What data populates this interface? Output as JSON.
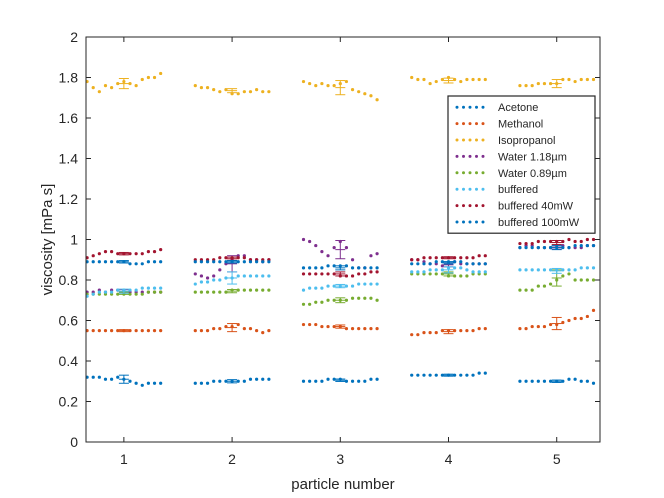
{
  "chart_data": {
    "type": "scatter",
    "title": "",
    "xlabel": "particle number",
    "ylabel": "viscosity [mPa s]",
    "xlim": [
      0.65,
      5.4
    ],
    "ylim": [
      0,
      2
    ],
    "xticks": [
      1,
      2,
      3,
      4,
      5
    ],
    "yticks": [
      0,
      0.2,
      0.4,
      0.6,
      0.8,
      1,
      1.2,
      1.4,
      1.6,
      1.8,
      2
    ],
    "ytick_labels": [
      "0",
      "0.2",
      "0.4",
      "0.6",
      "0.8",
      "1",
      "1.2",
      "1.4",
      "1.6",
      "1.8",
      "2"
    ],
    "grid": false,
    "legend_position": "top-right",
    "series": [
      {
        "name": "Acetone",
        "color": "#0072BD",
        "particles": [
          {
            "particle": 1,
            "mean": 0.31,
            "err": 0.02,
            "values": [
              0.32,
              0.32,
              0.32,
              0.31,
              0.31,
              0.32,
              0.31,
              0.3,
              0.29,
              0.28,
              0.29,
              0.29,
              0.29
            ]
          },
          {
            "particle": 2,
            "mean": 0.3,
            "err": 0.008,
            "values": [
              0.29,
              0.29,
              0.29,
              0.3,
              0.3,
              0.3,
              0.3,
              0.3,
              0.3,
              0.31,
              0.31,
              0.31,
              0.31
            ]
          },
          {
            "particle": 3,
            "mean": 0.305,
            "err": 0.006,
            "values": [
              0.3,
              0.3,
              0.3,
              0.3,
              0.31,
              0.31,
              0.31,
              0.3,
              0.3,
              0.3,
              0.3,
              0.31,
              0.31
            ]
          },
          {
            "particle": 4,
            "mean": 0.33,
            "err": 0.005,
            "values": [
              0.33,
              0.33,
              0.33,
              0.33,
              0.33,
              0.33,
              0.33,
              0.33,
              0.33,
              0.33,
              0.33,
              0.34,
              0.34
            ]
          },
          {
            "particle": 5,
            "mean": 0.3,
            "err": 0.006,
            "values": [
              0.3,
              0.3,
              0.3,
              0.3,
              0.3,
              0.3,
              0.3,
              0.3,
              0.31,
              0.31,
              0.3,
              0.3,
              0.29
            ]
          }
        ]
      },
      {
        "name": "Methanol",
        "color": "#D95319",
        "particles": [
          {
            "particle": 1,
            "mean": 0.55,
            "err": 0.005,
            "values": [
              0.55,
              0.55,
              0.55,
              0.55,
              0.55,
              0.55,
              0.55,
              0.55,
              0.55,
              0.55,
              0.55,
              0.55,
              0.55
            ]
          },
          {
            "particle": 2,
            "mean": 0.565,
            "err": 0.02,
            "values": [
              0.55,
              0.55,
              0.55,
              0.56,
              0.56,
              0.57,
              0.57,
              0.58,
              0.56,
              0.56,
              0.55,
              0.54,
              0.55
            ]
          },
          {
            "particle": 3,
            "mean": 0.57,
            "err": 0.008,
            "values": [
              0.58,
              0.58,
              0.58,
              0.57,
              0.57,
              0.57,
              0.57,
              0.56,
              0.56,
              0.56,
              0.56,
              0.56,
              0.56
            ]
          },
          {
            "particle": 4,
            "mean": 0.545,
            "err": 0.01,
            "values": [
              0.53,
              0.53,
              0.54,
              0.54,
              0.54,
              0.55,
              0.55,
              0.55,
              0.55,
              0.55,
              0.55,
              0.56,
              0.56
            ]
          },
          {
            "particle": 5,
            "mean": 0.585,
            "err": 0.03,
            "values": [
              0.56,
              0.56,
              0.57,
              0.57,
              0.57,
              0.58,
              0.58,
              0.59,
              0.6,
              0.61,
              0.61,
              0.62,
              0.65
            ]
          }
        ]
      },
      {
        "name": "Isopropanol",
        "color": "#EDB120",
        "particles": [
          {
            "particle": 1,
            "mean": 1.77,
            "err": 0.025,
            "values": [
              1.78,
              1.75,
              1.73,
              1.76,
              1.75,
              1.77,
              1.78,
              1.77,
              1.76,
              1.79,
              1.8,
              1.8,
              1.82
            ]
          },
          {
            "particle": 2,
            "mean": 1.735,
            "err": 0.01,
            "values": [
              1.76,
              1.75,
              1.75,
              1.74,
              1.73,
              1.74,
              1.72,
              1.72,
              1.73,
              1.73,
              1.74,
              1.73,
              1.73
            ]
          },
          {
            "particle": 3,
            "mean": 1.75,
            "err": 0.035,
            "values": [
              1.78,
              1.77,
              1.76,
              1.77,
              1.76,
              1.76,
              1.77,
              1.78,
              1.74,
              1.73,
              1.72,
              1.71,
              1.69
            ]
          },
          {
            "particle": 4,
            "mean": 1.785,
            "err": 0.012,
            "values": [
              1.8,
              1.79,
              1.79,
              1.77,
              1.78,
              1.79,
              1.8,
              1.79,
              1.78,
              1.79,
              1.79,
              1.79,
              1.79
            ]
          },
          {
            "particle": 5,
            "mean": 1.77,
            "err": 0.02,
            "values": [
              1.76,
              1.76,
              1.76,
              1.77,
              1.77,
              1.77,
              1.77,
              1.79,
              1.79,
              1.78,
              1.79,
              1.79,
              1.79
            ]
          }
        ]
      },
      {
        "name": "Water 1.18µm",
        "color": "#7E2F8E",
        "particles": [
          {
            "particle": 1,
            "mean": 0.745,
            "err": 0.008,
            "values": [
              0.74,
              0.74,
              0.75,
              0.74,
              0.75,
              0.75,
              0.75,
              0.74,
              0.74,
              0.74,
              0.74,
              0.74,
              0.74
            ]
          },
          {
            "particle": 2,
            "mean": 0.88,
            "err": 0.04,
            "values": [
              0.83,
              0.82,
              0.81,
              0.82,
              0.85,
              0.88,
              0.9,
              0.92,
              0.92,
              0.9,
              0.9,
              0.89,
              0.9
            ]
          },
          {
            "particle": 3,
            "mean": 0.95,
            "err": 0.045,
            "values": [
              1.0,
              0.99,
              0.97,
              0.94,
              0.92,
              0.96,
              0.99,
              0.96,
              0.9,
              0.86,
              0.86,
              0.92,
              0.93
            ]
          },
          {
            "particle": 4,
            "mean": 0.875,
            "err": 0.01,
            "values": [
              0.9,
              0.9,
              0.89,
              0.88,
              0.88,
              0.87,
              0.88,
              0.89,
              0.88,
              0.88,
              0.88,
              0.88,
              0.88
            ]
          },
          {
            "particle": 5,
            "mean": 0.96,
            "err": 0.008,
            "values": [
              0.96,
              0.97,
              0.97,
              0.96,
              0.96,
              0.96,
              0.97,
              0.97,
              0.96,
              0.96,
              0.96,
              0.97,
              0.97
            ]
          }
        ]
      },
      {
        "name": "Water 0.89µm",
        "color": "#77AC30",
        "particles": [
          {
            "particle": 1,
            "mean": 0.735,
            "err": 0.006,
            "values": [
              0.73,
              0.73,
              0.73,
              0.73,
              0.73,
              0.73,
              0.73,
              0.73,
              0.73,
              0.73,
              0.74,
              0.74,
              0.74
            ]
          },
          {
            "particle": 2,
            "mean": 0.745,
            "err": 0.008,
            "values": [
              0.74,
              0.74,
              0.74,
              0.74,
              0.74,
              0.74,
              0.75,
              0.75,
              0.75,
              0.75,
              0.75,
              0.75,
              0.75
            ]
          },
          {
            "particle": 3,
            "mean": 0.7,
            "err": 0.012,
            "values": [
              0.68,
              0.68,
              0.69,
              0.69,
              0.7,
              0.7,
              0.7,
              0.7,
              0.71,
              0.71,
              0.71,
              0.71,
              0.7
            ]
          },
          {
            "particle": 4,
            "mean": 0.83,
            "err": 0.01,
            "values": [
              0.83,
              0.83,
              0.83,
              0.83,
              0.83,
              0.83,
              0.82,
              0.82,
              0.82,
              0.82,
              0.83,
              0.83,
              0.83
            ]
          },
          {
            "particle": 5,
            "mean": 0.81,
            "err": 0.04,
            "values": [
              0.75,
              0.75,
              0.75,
              0.77,
              0.77,
              0.78,
              0.8,
              0.82,
              0.83,
              0.8,
              0.8,
              0.8,
              0.8
            ]
          }
        ]
      },
      {
        "name": "buffered",
        "color": "#4DBEEE",
        "particles": [
          {
            "particle": 1,
            "mean": 0.745,
            "err": 0.01,
            "values": [
              0.72,
              0.73,
              0.74,
              0.74,
              0.74,
              0.75,
              0.75,
              0.75,
              0.75,
              0.76,
              0.76,
              0.76,
              0.76
            ]
          },
          {
            "particle": 2,
            "mean": 0.81,
            "err": 0.03,
            "values": [
              0.78,
              0.79,
              0.79,
              0.8,
              0.8,
              0.81,
              0.81,
              0.82,
              0.82,
              0.82,
              0.82,
              0.82,
              0.82
            ]
          },
          {
            "particle": 3,
            "mean": 0.77,
            "err": 0.008,
            "values": [
              0.75,
              0.76,
              0.76,
              0.76,
              0.77,
              0.77,
              0.77,
              0.77,
              0.77,
              0.78,
              0.78,
              0.78,
              0.78
            ]
          },
          {
            "particle": 4,
            "mean": 0.85,
            "err": 0.015,
            "values": [
              0.84,
              0.84,
              0.84,
              0.85,
              0.85,
              0.85,
              0.86,
              0.86,
              0.86,
              0.85,
              0.84,
              0.84,
              0.84
            ]
          },
          {
            "particle": 5,
            "mean": 0.845,
            "err": 0.012,
            "values": [
              0.85,
              0.85,
              0.85,
              0.85,
              0.85,
              0.85,
              0.85,
              0.85,
              0.85,
              0.85,
              0.86,
              0.86,
              0.86
            ]
          }
        ]
      },
      {
        "name": "buffered 40mW",
        "color": "#A2142F",
        "particles": [
          {
            "particle": 1,
            "mean": 0.93,
            "err": 0.006,
            "values": [
              0.91,
              0.92,
              0.93,
              0.94,
              0.94,
              0.93,
              0.93,
              0.93,
              0.93,
              0.93,
              0.94,
              0.94,
              0.95
            ]
          },
          {
            "particle": 2,
            "mean": 0.905,
            "err": 0.008,
            "values": [
              0.9,
              0.9,
              0.9,
              0.9,
              0.91,
              0.91,
              0.91,
              0.91,
              0.91,
              0.9,
              0.9,
              0.9,
              0.9
            ]
          },
          {
            "particle": 3,
            "mean": 0.83,
            "err": 0.01,
            "values": [
              0.83,
              0.83,
              0.83,
              0.83,
              0.83,
              0.83,
              0.82,
              0.82,
              0.82,
              0.83,
              0.83,
              0.84,
              0.84
            ]
          },
          {
            "particle": 4,
            "mean": 0.91,
            "err": 0.005,
            "values": [
              0.9,
              0.9,
              0.91,
              0.91,
              0.91,
              0.91,
              0.91,
              0.91,
              0.91,
              0.91,
              0.91,
              0.92,
              0.92
            ]
          },
          {
            "particle": 5,
            "mean": 0.985,
            "err": 0.01,
            "values": [
              0.98,
              0.98,
              0.98,
              0.99,
              0.99,
              0.99,
              0.99,
              0.99,
              1.0,
              0.99,
              0.99,
              1.0,
              1.0
            ]
          }
        ]
      },
      {
        "name": "buffered 100mW",
        "color": "#0072BD",
        "particles": [
          {
            "particle": 1,
            "mean": 0.89,
            "err": 0.006,
            "values": [
              0.89,
              0.89,
              0.89,
              0.89,
              0.89,
              0.89,
              0.89,
              0.88,
              0.88,
              0.88,
              0.89,
              0.89,
              0.89
            ]
          },
          {
            "particle": 2,
            "mean": 0.89,
            "err": 0.006,
            "values": [
              0.89,
              0.89,
              0.89,
              0.89,
              0.89,
              0.89,
              0.89,
              0.89,
              0.89,
              0.89,
              0.89,
              0.89,
              0.89
            ]
          },
          {
            "particle": 3,
            "mean": 0.86,
            "err": 0.01,
            "values": [
              0.86,
              0.86,
              0.86,
              0.86,
              0.87,
              0.87,
              0.87,
              0.87,
              0.86,
              0.86,
              0.86,
              0.86,
              0.86
            ]
          },
          {
            "particle": 4,
            "mean": 0.885,
            "err": 0.006,
            "values": [
              0.88,
              0.88,
              0.88,
              0.88,
              0.89,
              0.89,
              0.89,
              0.89,
              0.89,
              0.88,
              0.88,
              0.88,
              0.88
            ]
          },
          {
            "particle": 5,
            "mean": 0.96,
            "err": 0.01,
            "values": [
              0.96,
              0.96,
              0.96,
              0.96,
              0.96,
              0.96,
              0.96,
              0.96,
              0.96,
              0.97,
              0.97,
              0.97,
              0.97
            ]
          }
        ]
      }
    ]
  }
}
